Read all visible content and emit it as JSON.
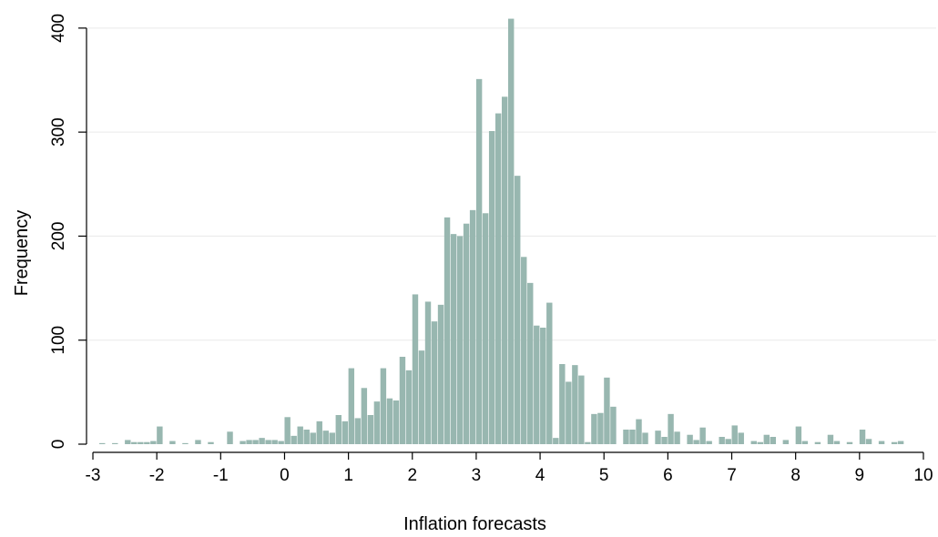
{
  "chart_data": {
    "type": "bar",
    "title": "",
    "xlabel": "Inflation forecasts",
    "ylabel": "Frequency",
    "xlim": [
      -3.1,
      10.2
    ],
    "ylim": [
      0,
      420
    ],
    "x_ticks": [
      -3,
      -2,
      -1,
      0,
      1,
      2,
      3,
      4,
      5,
      6,
      7,
      8,
      9,
      10
    ],
    "x_tick_labels": [
      "-3",
      "-2",
      "-1",
      "0",
      "1",
      "2",
      "3",
      "4",
      "5",
      "6",
      "7",
      "8",
      "9",
      "10"
    ],
    "y_ticks": [
      0,
      100,
      200,
      300,
      400
    ],
    "y_tick_labels": [
      "0",
      "100",
      "200",
      "300",
      "400"
    ],
    "grid": true,
    "bin_width": 0.1,
    "colors": {
      "bar": "#98b7b0",
      "grid": "#eaeaea",
      "axis": "#000000"
    },
    "bins": [
      {
        "x": -2.9,
        "count": 1
      },
      {
        "x": -2.7,
        "count": 1
      },
      {
        "x": -2.5,
        "count": 4
      },
      {
        "x": -2.4,
        "count": 2
      },
      {
        "x": -2.3,
        "count": 2
      },
      {
        "x": -2.2,
        "count": 2
      },
      {
        "x": -2.1,
        "count": 3
      },
      {
        "x": -2.0,
        "count": 17
      },
      {
        "x": -1.8,
        "count": 3
      },
      {
        "x": -1.6,
        "count": 1
      },
      {
        "x": -1.4,
        "count": 4
      },
      {
        "x": -1.2,
        "count": 2
      },
      {
        "x": -0.9,
        "count": 12
      },
      {
        "x": -0.7,
        "count": 3
      },
      {
        "x": -0.6,
        "count": 4
      },
      {
        "x": -0.5,
        "count": 4
      },
      {
        "x": -0.4,
        "count": 6
      },
      {
        "x": -0.3,
        "count": 4
      },
      {
        "x": -0.2,
        "count": 4
      },
      {
        "x": -0.1,
        "count": 3
      },
      {
        "x": 0.0,
        "count": 26
      },
      {
        "x": 0.1,
        "count": 8
      },
      {
        "x": 0.2,
        "count": 17
      },
      {
        "x": 0.3,
        "count": 14
      },
      {
        "x": 0.4,
        "count": 11
      },
      {
        "x": 0.5,
        "count": 22
      },
      {
        "x": 0.6,
        "count": 13
      },
      {
        "x": 0.7,
        "count": 11
      },
      {
        "x": 0.8,
        "count": 28
      },
      {
        "x": 0.9,
        "count": 22
      },
      {
        "x": 1.0,
        "count": 73
      },
      {
        "x": 1.1,
        "count": 25
      },
      {
        "x": 1.2,
        "count": 54
      },
      {
        "x": 1.3,
        "count": 28
      },
      {
        "x": 1.4,
        "count": 41
      },
      {
        "x": 1.5,
        "count": 73
      },
      {
        "x": 1.6,
        "count": 44
      },
      {
        "x": 1.7,
        "count": 42
      },
      {
        "x": 1.8,
        "count": 84
      },
      {
        "x": 1.9,
        "count": 71
      },
      {
        "x": 2.0,
        "count": 144
      },
      {
        "x": 2.1,
        "count": 90
      },
      {
        "x": 2.2,
        "count": 137
      },
      {
        "x": 2.3,
        "count": 118
      },
      {
        "x": 2.4,
        "count": 134
      },
      {
        "x": 2.5,
        "count": 218
      },
      {
        "x": 2.6,
        "count": 202
      },
      {
        "x": 2.7,
        "count": 200
      },
      {
        "x": 2.8,
        "count": 212
      },
      {
        "x": 2.9,
        "count": 225
      },
      {
        "x": 3.0,
        "count": 351
      },
      {
        "x": 3.1,
        "count": 222
      },
      {
        "x": 3.2,
        "count": 301
      },
      {
        "x": 3.3,
        "count": 318
      },
      {
        "x": 3.4,
        "count": 334
      },
      {
        "x": 3.5,
        "count": 409
      },
      {
        "x": 3.6,
        "count": 258
      },
      {
        "x": 3.7,
        "count": 180
      },
      {
        "x": 3.8,
        "count": 155
      },
      {
        "x": 3.9,
        "count": 114
      },
      {
        "x": 4.0,
        "count": 112
      },
      {
        "x": 4.1,
        "count": 136
      },
      {
        "x": 4.2,
        "count": 6
      },
      {
        "x": 4.3,
        "count": 77
      },
      {
        "x": 4.4,
        "count": 60
      },
      {
        "x": 4.5,
        "count": 76
      },
      {
        "x": 4.6,
        "count": 66
      },
      {
        "x": 4.7,
        "count": 2
      },
      {
        "x": 4.8,
        "count": 29
      },
      {
        "x": 4.9,
        "count": 30
      },
      {
        "x": 5.0,
        "count": 64
      },
      {
        "x": 5.1,
        "count": 36
      },
      {
        "x": 5.3,
        "count": 14
      },
      {
        "x": 5.4,
        "count": 14
      },
      {
        "x": 5.5,
        "count": 24
      },
      {
        "x": 5.6,
        "count": 11
      },
      {
        "x": 5.8,
        "count": 13
      },
      {
        "x": 5.9,
        "count": 7
      },
      {
        "x": 6.0,
        "count": 29
      },
      {
        "x": 6.1,
        "count": 12
      },
      {
        "x": 6.3,
        "count": 9
      },
      {
        "x": 6.4,
        "count": 4
      },
      {
        "x": 6.5,
        "count": 16
      },
      {
        "x": 6.6,
        "count": 3
      },
      {
        "x": 6.8,
        "count": 7
      },
      {
        "x": 6.9,
        "count": 5
      },
      {
        "x": 7.0,
        "count": 18
      },
      {
        "x": 7.1,
        "count": 11
      },
      {
        "x": 7.3,
        "count": 3
      },
      {
        "x": 7.4,
        "count": 2
      },
      {
        "x": 7.5,
        "count": 9
      },
      {
        "x": 7.6,
        "count": 7
      },
      {
        "x": 7.8,
        "count": 4
      },
      {
        "x": 8.0,
        "count": 17
      },
      {
        "x": 8.1,
        "count": 3
      },
      {
        "x": 8.3,
        "count": 2
      },
      {
        "x": 8.5,
        "count": 9
      },
      {
        "x": 8.6,
        "count": 3
      },
      {
        "x": 8.8,
        "count": 2
      },
      {
        "x": 9.0,
        "count": 14
      },
      {
        "x": 9.1,
        "count": 5
      },
      {
        "x": 9.3,
        "count": 3
      },
      {
        "x": 9.5,
        "count": 2
      },
      {
        "x": 9.6,
        "count": 3
      }
    ]
  }
}
